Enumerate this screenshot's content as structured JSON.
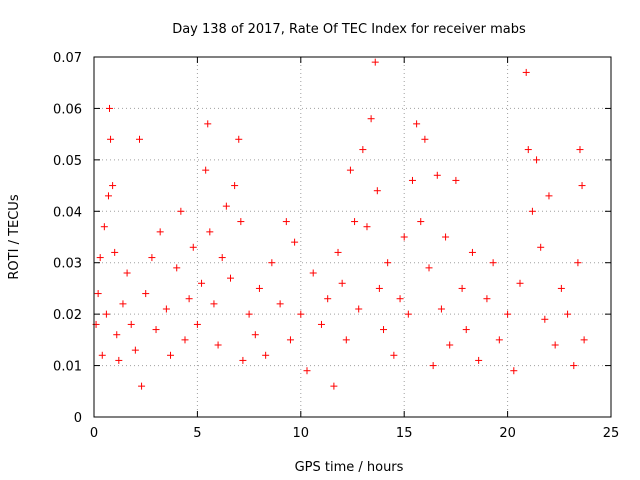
{
  "chart_data": {
    "type": "scatter",
    "title": "Day 138 of 2017, Rate Of TEC Index for receiver mabs",
    "xlabel": "GPS time / hours",
    "ylabel": "ROTI / TECUs",
    "xlim": [
      0,
      25
    ],
    "ylim": [
      0,
      0.07
    ],
    "xticks": [
      "0",
      "5",
      "10",
      "15",
      "20",
      "25"
    ],
    "yticks": [
      "0",
      "0.01",
      "0.02",
      "0.03",
      "0.04",
      "0.05",
      "0.06",
      "0.07"
    ],
    "grid": true,
    "marker": "plus",
    "color": "#ff0000",
    "series": [
      {
        "values": [
          [
            0.1,
            0.018
          ],
          [
            0.2,
            0.024
          ],
          [
            0.3,
            0.031
          ],
          [
            0.4,
            0.012
          ],
          [
            0.5,
            0.037
          ],
          [
            0.6,
            0.02
          ],
          [
            0.7,
            0.043
          ],
          [
            0.75,
            0.06
          ],
          [
            0.8,
            0.054
          ],
          [
            0.9,
            0.045
          ],
          [
            1.0,
            0.032
          ],
          [
            1.1,
            0.016
          ],
          [
            1.2,
            0.011
          ],
          [
            1.4,
            0.022
          ],
          [
            1.6,
            0.028
          ],
          [
            1.8,
            0.018
          ],
          [
            2.0,
            0.013
          ],
          [
            2.2,
            0.054
          ],
          [
            2.3,
            0.006
          ],
          [
            2.5,
            0.024
          ],
          [
            2.8,
            0.031
          ],
          [
            3.0,
            0.017
          ],
          [
            3.2,
            0.036
          ],
          [
            3.5,
            0.021
          ],
          [
            3.7,
            0.012
          ],
          [
            4.0,
            0.029
          ],
          [
            4.2,
            0.04
          ],
          [
            4.4,
            0.015
          ],
          [
            4.6,
            0.023
          ],
          [
            4.8,
            0.033
          ],
          [
            5.0,
            0.018
          ],
          [
            5.2,
            0.026
          ],
          [
            5.4,
            0.048
          ],
          [
            5.5,
            0.057
          ],
          [
            5.6,
            0.036
          ],
          [
            5.8,
            0.022
          ],
          [
            6.0,
            0.014
          ],
          [
            6.2,
            0.031
          ],
          [
            6.4,
            0.041
          ],
          [
            6.6,
            0.027
          ],
          [
            6.8,
            0.045
          ],
          [
            7.0,
            0.054
          ],
          [
            7.1,
            0.038
          ],
          [
            7.2,
            0.011
          ],
          [
            7.5,
            0.02
          ],
          [
            7.8,
            0.016
          ],
          [
            8.0,
            0.025
          ],
          [
            8.3,
            0.012
          ],
          [
            8.6,
            0.03
          ],
          [
            9.0,
            0.022
          ],
          [
            9.3,
            0.038
          ],
          [
            9.5,
            0.015
          ],
          [
            9.7,
            0.034
          ],
          [
            10.0,
            0.02
          ],
          [
            10.3,
            0.009
          ],
          [
            10.6,
            0.028
          ],
          [
            11.0,
            0.018
          ],
          [
            11.3,
            0.023
          ],
          [
            11.6,
            0.006
          ],
          [
            11.8,
            0.032
          ],
          [
            12.0,
            0.026
          ],
          [
            12.2,
            0.015
          ],
          [
            12.4,
            0.048
          ],
          [
            12.6,
            0.038
          ],
          [
            12.8,
            0.021
          ],
          [
            13.0,
            0.052
          ],
          [
            13.2,
            0.037
          ],
          [
            13.4,
            0.058
          ],
          [
            13.6,
            0.069
          ],
          [
            13.7,
            0.044
          ],
          [
            13.8,
            0.025
          ],
          [
            14.0,
            0.017
          ],
          [
            14.2,
            0.03
          ],
          [
            14.5,
            0.012
          ],
          [
            14.8,
            0.023
          ],
          [
            15.0,
            0.035
          ],
          [
            15.2,
            0.02
          ],
          [
            15.4,
            0.046
          ],
          [
            15.6,
            0.057
          ],
          [
            15.8,
            0.038
          ],
          [
            16.0,
            0.054
          ],
          [
            16.2,
            0.029
          ],
          [
            16.4,
            0.01
          ],
          [
            16.6,
            0.047
          ],
          [
            16.8,
            0.021
          ],
          [
            17.0,
            0.035
          ],
          [
            17.2,
            0.014
          ],
          [
            17.5,
            0.046
          ],
          [
            17.8,
            0.025
          ],
          [
            18.0,
            0.017
          ],
          [
            18.3,
            0.032
          ],
          [
            18.6,
            0.011
          ],
          [
            19.0,
            0.023
          ],
          [
            19.3,
            0.03
          ],
          [
            19.6,
            0.015
          ],
          [
            20.0,
            0.02
          ],
          [
            20.3,
            0.009
          ],
          [
            20.6,
            0.026
          ],
          [
            20.9,
            0.067
          ],
          [
            21.0,
            0.052
          ],
          [
            21.2,
            0.04
          ],
          [
            21.4,
            0.05
          ],
          [
            21.6,
            0.033
          ],
          [
            21.8,
            0.019
          ],
          [
            22.0,
            0.043
          ],
          [
            22.3,
            0.014
          ],
          [
            22.6,
            0.025
          ],
          [
            22.9,
            0.02
          ],
          [
            23.2,
            0.01
          ],
          [
            23.4,
            0.03
          ],
          [
            23.5,
            0.052
          ],
          [
            23.6,
            0.045
          ],
          [
            23.7,
            0.015
          ]
        ]
      }
    ]
  }
}
